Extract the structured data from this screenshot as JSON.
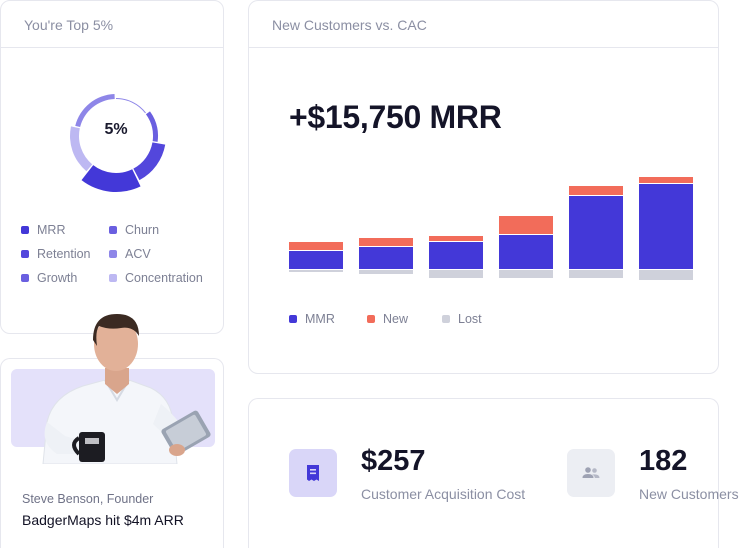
{
  "top_card": {
    "title": "You're Top 5%",
    "donut_center": "5%",
    "legend": [
      {
        "label": "MRR",
        "color": "#4338d8"
      },
      {
        "label": "Churn",
        "color": "#6a5fe0"
      },
      {
        "label": "Retention",
        "color": "#5347dc"
      },
      {
        "label": "ACV",
        "color": "#8e86e8"
      },
      {
        "label": "Growth",
        "color": "#6a5fe0"
      },
      {
        "label": "Concentration",
        "color": "#bdb8f2"
      }
    ]
  },
  "quote_card": {
    "founder": "Steve Benson, Founder",
    "quote": "BadgerMaps hit $4m ARR"
  },
  "chart_card": {
    "title": "New Customers vs. CAC",
    "headline": "+$15,750 MRR",
    "legend": [
      {
        "label": "MMR",
        "color": "#4338d8"
      },
      {
        "label": "New",
        "color": "#f26c5a"
      },
      {
        "label": "Lost",
        "color": "#cfd1db"
      }
    ]
  },
  "chart_data": {
    "type": "bar",
    "categories": [
      "",
      "",
      "",
      "",
      "",
      ""
    ],
    "series": [
      {
        "name": "MMR",
        "values": [
          18,
          22,
          27,
          34,
          73,
          85
        ]
      },
      {
        "name": "New",
        "values": [
          8,
          8,
          5,
          18,
          9,
          6
        ]
      },
      {
        "name": "Lost",
        "values": [
          2,
          4,
          8,
          8,
          8,
          10
        ]
      }
    ],
    "xlabel": "",
    "ylabel": ""
  },
  "kpis": [
    {
      "value": "$257",
      "label": "Customer Acquisition Cost",
      "icon": "receipt-icon"
    },
    {
      "value": "182",
      "label": "New Customers",
      "icon": "users-icon"
    }
  ]
}
